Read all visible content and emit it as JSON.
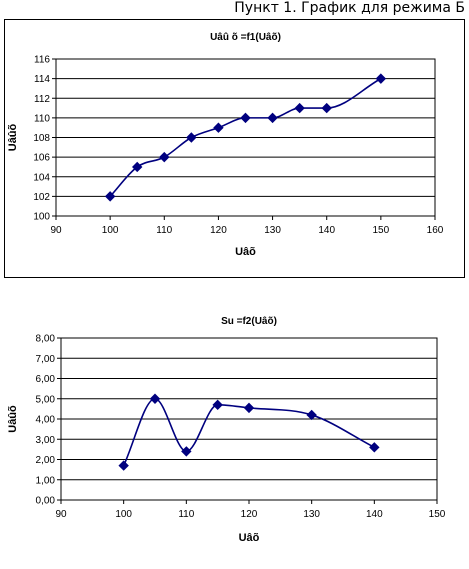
{
  "page": {
    "heading": "Пункт 1. График для режима Б"
  },
  "chart_data": [
    {
      "type": "line",
      "title": "Uâû õ =f1(Uâõ)",
      "xlabel": "Uâõ",
      "ylabel": "Uâûõ",
      "xlim": [
        90,
        160
      ],
      "ylim": [
        100,
        116
      ],
      "x_ticks": [
        "90",
        "100",
        "110",
        "120",
        "130",
        "140",
        "150",
        "160"
      ],
      "y_ticks": [
        "100",
        "102",
        "104",
        "106",
        "108",
        "110",
        "112",
        "114",
        "116"
      ],
      "grid": "horizontal",
      "smooth": true,
      "marker": "diamond",
      "color": "#00007f",
      "series": [
        {
          "x": [
            100,
            105,
            110,
            115,
            120,
            125,
            130,
            135,
            140,
            150
          ],
          "y": [
            102,
            105,
            106,
            108,
            109,
            110,
            110,
            111,
            111,
            114
          ]
        }
      ]
    },
    {
      "type": "line",
      "title": "Su =f2(Uâõ)",
      "xlabel": "Uâõ",
      "ylabel": "Uâûõ",
      "xlim": [
        90,
        150
      ],
      "ylim": [
        0,
        8
      ],
      "x_ticks": [
        "90",
        "100",
        "110",
        "120",
        "130",
        "140",
        "150"
      ],
      "y_ticks": [
        "0,00",
        "1,00",
        "2,00",
        "3,00",
        "4,00",
        "5,00",
        "6,00",
        "7,00",
        "8,00"
      ],
      "grid": "horizontal",
      "smooth": true,
      "marker": "diamond",
      "color": "#00007f",
      "series": [
        {
          "x": [
            100,
            105,
            110,
            115,
            120,
            130,
            140
          ],
          "y": [
            1.7,
            5.0,
            2.4,
            4.7,
            4.55,
            4.2,
            2.6
          ]
        }
      ]
    }
  ]
}
